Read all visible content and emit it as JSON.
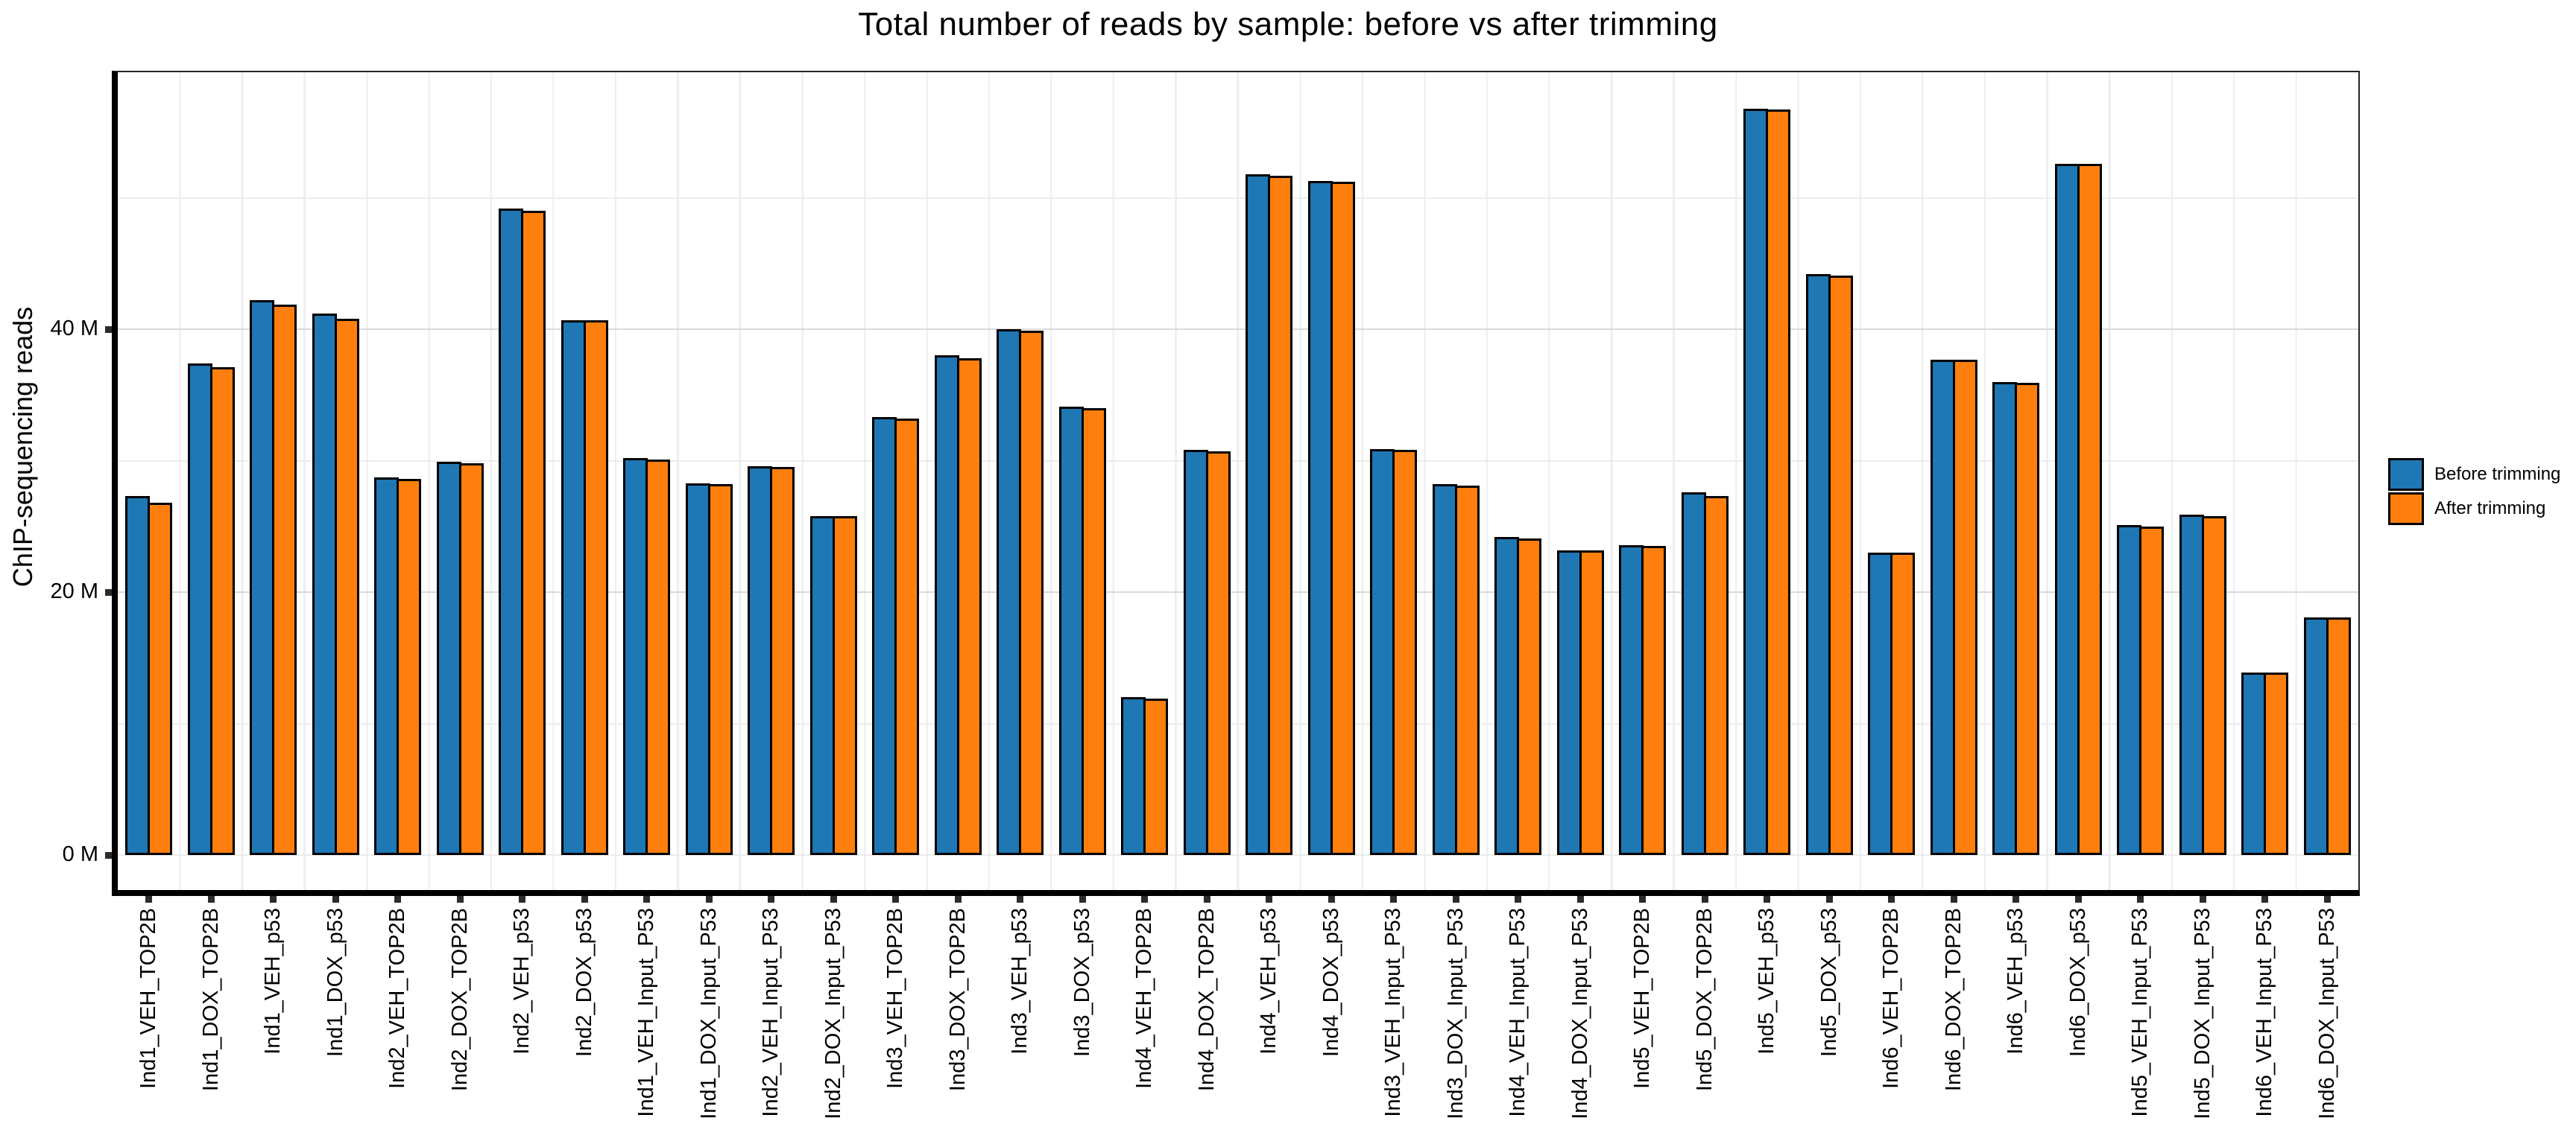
{
  "page": {
    "background": "#ffffff"
  },
  "chart_data": {
    "type": "bar",
    "title": "Total number of reads by sample: before vs after trimming",
    "xlabel": "",
    "ylabel": "ChIP-sequencing reads",
    "unit": "millions of reads (M)",
    "ylim": [
      0,
      59.5
    ],
    "grid": "horizontal major at 20M/40M, minor every 10M, light vertical separators per sample",
    "legend_position": "right-middle",
    "axis_color": "#000000",
    "grid_major_color": "#d9d9d9",
    "grid_minor_color": "#ececec",
    "tick_color": "#2b2b2b",
    "bar_edge_color": "#000000",
    "yticks": [
      {
        "value": 0,
        "label": "0 M"
      },
      {
        "value": 20,
        "label": "20 M"
      },
      {
        "value": 40,
        "label": "40 M"
      }
    ],
    "gridline_values_m": [
      0,
      10,
      20,
      30,
      40,
      50
    ],
    "categories": [
      "Ind1_VEH_TOP2B",
      "Ind1_DOX_TOP2B",
      "Ind1_VEH_p53",
      "Ind1_DOX_p53",
      "Ind2_VEH_TOP2B",
      "Ind2_DOX_TOP2B",
      "Ind2_VEH_p53",
      "Ind2_DOX_p53",
      "Ind1_VEH_Input_P53",
      "Ind1_DOX_Input_P53",
      "Ind2_VEH_Input_P53",
      "Ind2_DOX_Input_P53",
      "Ind3_VEH_TOP2B",
      "Ind3_DOX_TOP2B",
      "Ind3_VEH_p53",
      "Ind3_DOX_p53",
      "Ind4_VEH_TOP2B",
      "Ind4_DOX_TOP2B",
      "Ind4_VEH_p53",
      "Ind4_DOX_p53",
      "Ind3_VEH_Input_P53",
      "Ind3_DOX_Input_P53",
      "Ind4_VEH_Input_P53",
      "Ind4_DOX_Input_P53",
      "Ind5_VEH_TOP2B",
      "Ind5_DOX_TOP2B",
      "Ind5_VEH_p53",
      "Ind5_DOX_p53",
      "Ind6_VEH_TOP2B",
      "Ind6_DOX_TOP2B",
      "Ind6_VEH_p53",
      "Ind6_DOX_p53",
      "Ind5_VEH_Input_P53",
      "Ind5_DOX_Input_P53",
      "Ind6_VEH_Input_P53",
      "Ind6_DOX_Input_P53"
    ],
    "series": [
      {
        "name": "Before trimming",
        "color": "#1f77b4",
        "values": [
          27.3,
          37.4,
          42.2,
          41.2,
          28.7,
          29.9,
          49.2,
          40.7,
          30.2,
          28.3,
          29.6,
          25.8,
          33.3,
          38.0,
          40.0,
          34.1,
          12.0,
          30.8,
          51.8,
          51.3,
          30.9,
          28.2,
          24.2,
          23.2,
          23.6,
          27.6,
          56.8,
          44.2,
          23.0,
          37.7,
          36.0,
          52.6,
          25.1,
          25.9,
          13.9,
          18.1
        ]
      },
      {
        "name": "After trimming",
        "color": "#ff7f0e",
        "values": [
          26.8,
          37.1,
          41.9,
          40.8,
          28.6,
          29.8,
          49.0,
          40.7,
          30.1,
          28.2,
          29.5,
          25.8,
          33.2,
          37.8,
          39.9,
          34.0,
          11.9,
          30.7,
          51.7,
          51.2,
          30.8,
          28.1,
          24.1,
          23.2,
          23.5,
          27.3,
          56.7,
          44.1,
          23.0,
          37.7,
          35.9,
          52.6,
          25.0,
          25.8,
          13.9,
          18.1
        ]
      }
    ]
  }
}
